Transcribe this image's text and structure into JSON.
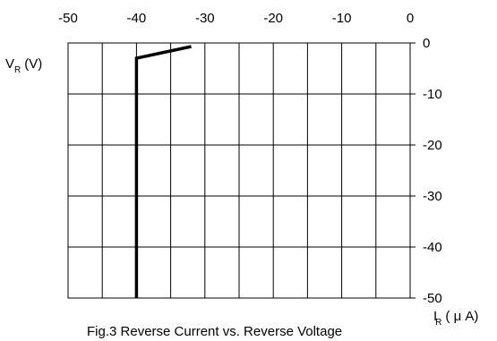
{
  "chart_data": {
    "type": "line",
    "title": "Fig.3 Reverse Current vs. Reverse Voltage",
    "xlabel": {
      "main": "I",
      "sub": "R",
      "units": "( μ A)"
    },
    "ylabel": {
      "main": "V",
      "sub": "R",
      "units": "(V)"
    },
    "xlim": [
      -50,
      0
    ],
    "ylim": [
      -50,
      0
    ],
    "x_ticks": [
      "-50",
      "-40",
      "-30",
      "-20",
      "-10",
      "0"
    ],
    "y_ticks": [
      "0",
      "-10",
      "-20",
      "-30",
      "-40",
      "-50"
    ],
    "grid": true,
    "series": [
      {
        "x": [
          -40,
          -40,
          -32
        ],
        "y": [
          -50,
          -3,
          -0.7
        ]
      }
    ]
  }
}
